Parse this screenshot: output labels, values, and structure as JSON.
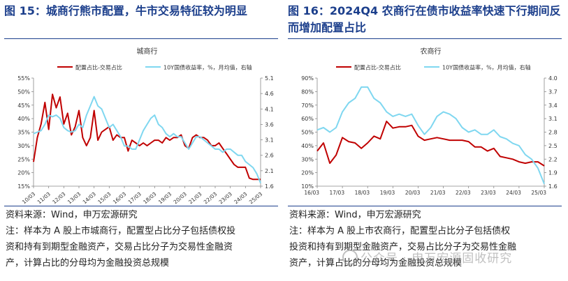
{
  "panels": [
    {
      "figure_title": "图 15：城商行熊市配置，牛市交易特征较为明显",
      "source": "资料来源：Wind，申万宏源研究",
      "note_lines": [
        "注：样本为 A 股上市城商行，配置型占比分子包括债权投",
        "资和持有到期型金融资产，交易占比分子为交易性金融资",
        "产，计算占比的分母均为金融投资总规模"
      ]
    },
    {
      "figure_title": "图 16：2024Q4 农商行在债市收益率快速下行期间反而增加配置占比",
      "source": "资料来源：Wind，申万宏源研究",
      "note_lines": [
        "注：样本为 A 股上市农商行，配置型占比分子包括债权",
        "投资和持有到期型金融资产，交易占比分子为交易性金融",
        "资产，计算占比的分母均为金融投资总规模"
      ]
    }
  ],
  "watermark": "公众号 · 申万宏源固收研究",
  "colors": {
    "ratio": "#c00000",
    "yield": "#7fd7f0",
    "title": "#1c3f8c"
  },
  "chart_data": [
    {
      "type": "line",
      "title": "城商行",
      "x_tick_labels": [
        "10/03",
        "11/03",
        "12/03",
        "13/03",
        "14/03",
        "15/03",
        "16/03",
        "17/03",
        "18/03",
        "19/03",
        "20/03",
        "21/03",
        "22/03",
        "23/03",
        "24/03",
        "25/03"
      ],
      "y_left": {
        "ticks": [
          "15%",
          "20%",
          "25%",
          "30%",
          "35%",
          "40%",
          "45%",
          "50%",
          "55%"
        ],
        "range": [
          15,
          55
        ],
        "unit": "%"
      },
      "y_right": {
        "ticks": [
          "1.6",
          "2.1",
          "2.6",
          "3.1",
          "3.6",
          "4.1",
          "4.6",
          "5.1"
        ],
        "range": [
          1.6,
          5.1
        ]
      },
      "grid": false,
      "legend_position": "top",
      "series": [
        {
          "name": "配置占比-交易占比",
          "axis": "left",
          "color": "#c00000",
          "x": [
            2010.0,
            2010.25,
            2010.5,
            2010.75,
            2011.0,
            2011.25,
            2011.5,
            2011.75,
            2012.0,
            2012.25,
            2012.5,
            2012.75,
            2013.0,
            2013.25,
            2013.5,
            2013.75,
            2014.0,
            2014.25,
            2014.5,
            2014.75,
            2015.0,
            2015.25,
            2015.5,
            2015.75,
            2016.0,
            2016.25,
            2016.5,
            2016.75,
            2017.0,
            2017.25,
            2017.5,
            2017.75,
            2018.0,
            2018.25,
            2018.5,
            2018.75,
            2019.0,
            2019.25,
            2019.5,
            2019.75,
            2020.0,
            2020.25,
            2020.5,
            2020.75,
            2021.0,
            2021.25,
            2021.5,
            2021.75,
            2022.0,
            2022.25,
            2022.5,
            2022.75,
            2023.0,
            2023.25,
            2023.5,
            2023.75,
            2024.0,
            2024.25,
            2024.5,
            2024.75,
            2025.0
          ],
          "values": [
            24,
            33,
            38,
            46,
            36,
            49,
            44,
            48,
            38,
            42,
            34,
            37,
            43,
            33,
            30,
            33,
            43,
            32,
            35,
            36,
            37,
            32,
            34,
            33,
            33,
            28,
            32,
            31,
            30,
            31,
            30,
            31,
            32,
            32,
            31,
            33,
            32,
            33,
            33,
            34,
            30,
            29,
            33,
            34,
            33,
            33,
            32,
            30,
            30,
            31,
            29,
            27,
            25,
            23,
            22,
            22,
            22,
            18,
            17.5,
            17.5,
            17.5
          ]
        },
        {
          "name": "10Y国债收益率，%，月均值，右轴",
          "axis": "right",
          "color": "#7fd7f0",
          "x": [
            2010.0,
            2010.25,
            2010.5,
            2010.75,
            2011.0,
            2011.25,
            2011.5,
            2011.75,
            2012.0,
            2012.25,
            2012.5,
            2012.75,
            2013.0,
            2013.25,
            2013.5,
            2013.75,
            2014.0,
            2014.25,
            2014.5,
            2014.75,
            2015.0,
            2015.25,
            2015.5,
            2015.75,
            2016.0,
            2016.25,
            2016.5,
            2016.75,
            2017.0,
            2017.25,
            2017.5,
            2017.75,
            2018.0,
            2018.25,
            2018.5,
            2018.75,
            2019.0,
            2019.25,
            2019.5,
            2019.75,
            2020.0,
            2020.25,
            2020.5,
            2020.75,
            2021.0,
            2021.25,
            2021.5,
            2021.75,
            2022.0,
            2022.25,
            2022.5,
            2022.75,
            2023.0,
            2023.25,
            2023.5,
            2023.75,
            2024.0,
            2024.25,
            2024.5,
            2024.75,
            2025.0
          ],
          "values": [
            3.3,
            3.35,
            3.4,
            3.6,
            3.9,
            3.85,
            3.9,
            3.8,
            3.5,
            3.4,
            3.35,
            3.4,
            3.6,
            3.5,
            3.9,
            4.2,
            4.5,
            4.2,
            4.1,
            3.8,
            3.5,
            3.6,
            3.4,
            3.2,
            2.9,
            2.9,
            2.8,
            2.8,
            3.1,
            3.4,
            3.6,
            3.8,
            3.9,
            3.6,
            3.5,
            3.3,
            3.2,
            3.3,
            3.2,
            3.2,
            3.0,
            2.8,
            3.0,
            3.2,
            3.2,
            3.1,
            3.0,
            2.9,
            2.8,
            2.8,
            2.7,
            2.8,
            2.8,
            2.7,
            2.6,
            2.6,
            2.4,
            2.3,
            2.2,
            2.0,
            1.7
          ]
        }
      ]
    },
    {
      "type": "line",
      "title": "农商行",
      "x_tick_labels": [
        "16/03",
        "17/03",
        "18/03",
        "19/03",
        "20/03",
        "21/03",
        "22/03",
        "23/03",
        "24/03",
        "25/03"
      ],
      "y_left": {
        "ticks": [
          "10%",
          "20%",
          "30%",
          "40%",
          "50%",
          "60%",
          "70%",
          "80%",
          "90%"
        ],
        "range": [
          10,
          90
        ],
        "unit": "%"
      },
      "y_right": {
        "ticks": [
          "1.6",
          "1.9",
          "2.2",
          "2.5",
          "2.8",
          "3.1",
          "3.4",
          "3.7",
          "4.0"
        ],
        "range": [
          1.6,
          4.0
        ]
      },
      "grid": false,
      "legend_position": "top",
      "series": [
        {
          "name": "配置占比-交易占比",
          "axis": "left",
          "color": "#c00000",
          "x": [
            2016.0,
            2016.25,
            2016.5,
            2016.75,
            2017.0,
            2017.25,
            2017.5,
            2017.75,
            2018.0,
            2018.25,
            2018.5,
            2018.75,
            2019.0,
            2019.25,
            2019.5,
            2019.75,
            2020.0,
            2020.25,
            2020.5,
            2020.75,
            2021.0,
            2021.25,
            2021.5,
            2021.75,
            2022.0,
            2022.25,
            2022.5,
            2022.75,
            2023.0,
            2023.25,
            2023.5,
            2023.75,
            2024.0,
            2024.25,
            2024.5,
            2024.75,
            2025.0
          ],
          "values": [
            36,
            42,
            27,
            33,
            46,
            43,
            42,
            38,
            42,
            47,
            45,
            58,
            53,
            54,
            54,
            55,
            47,
            44,
            45,
            46,
            45,
            44,
            44,
            44,
            43,
            39,
            39,
            36,
            38,
            32,
            31,
            30,
            28,
            27,
            28,
            28,
            25
          ]
        },
        {
          "name": "10Y国债收益率，%，月均值，右轴",
          "axis": "right",
          "color": "#7fd7f0",
          "x": [
            2016.0,
            2016.25,
            2016.5,
            2016.75,
            2017.0,
            2017.25,
            2017.5,
            2017.75,
            2018.0,
            2018.25,
            2018.5,
            2018.75,
            2019.0,
            2019.25,
            2019.5,
            2019.75,
            2020.0,
            2020.25,
            2020.5,
            2020.75,
            2021.0,
            2021.25,
            2021.5,
            2021.75,
            2022.0,
            2022.25,
            2022.5,
            2022.75,
            2023.0,
            2023.25,
            2023.5,
            2023.75,
            2024.0,
            2024.25,
            2024.5,
            2024.75,
            2025.0
          ],
          "values": [
            2.85,
            2.9,
            2.8,
            2.9,
            3.25,
            3.45,
            3.55,
            3.8,
            3.8,
            3.55,
            3.45,
            3.25,
            3.15,
            3.2,
            3.15,
            3.2,
            2.95,
            2.75,
            2.9,
            3.15,
            3.25,
            3.2,
            3.1,
            2.9,
            2.8,
            2.85,
            2.75,
            2.75,
            2.85,
            2.7,
            2.65,
            2.55,
            2.5,
            2.3,
            2.2,
            2.0,
            1.65
          ]
        }
      ]
    }
  ]
}
